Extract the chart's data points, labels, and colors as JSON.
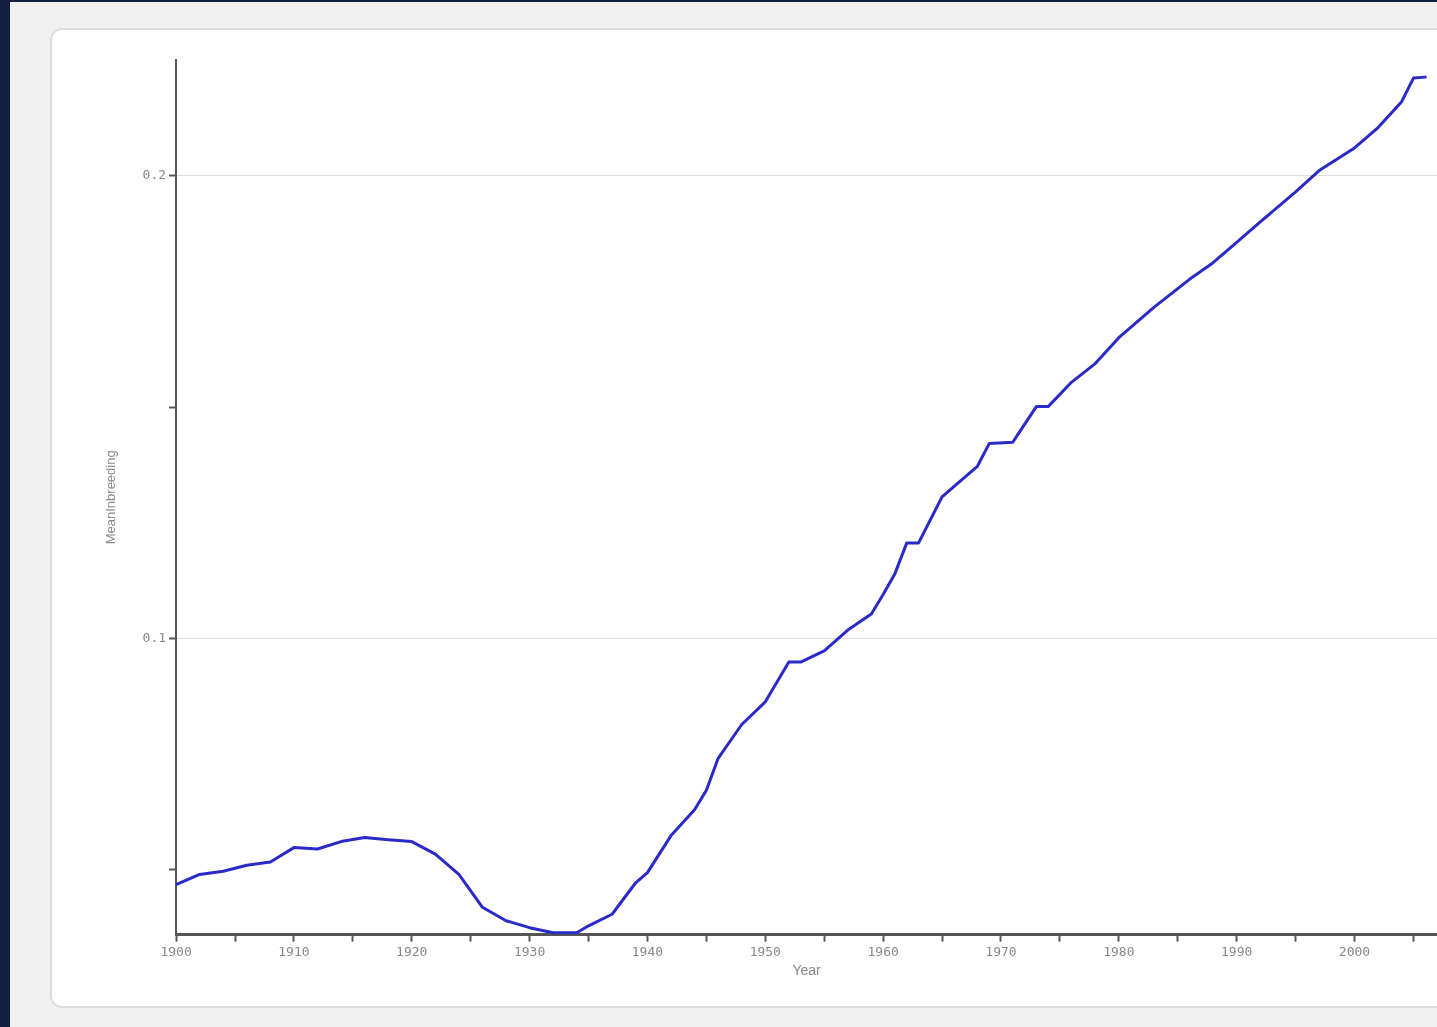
{
  "chart_data": {
    "type": "line",
    "xlabel": "Year",
    "ylabel": "MeanInbreeding",
    "x": [
      1900,
      1902,
      1904,
      1906,
      1908,
      1910,
      1912,
      1914,
      1916,
      1918,
      1920,
      1922,
      1924,
      1926,
      1928,
      1930,
      1932,
      1934,
      1935,
      1937,
      1939,
      1940,
      1942,
      1944,
      1945,
      1946,
      1948,
      1950,
      1952,
      1953,
      1955,
      1957,
      1959,
      1960,
      1961,
      1962,
      1963,
      1965,
      1966,
      1968,
      1969,
      1971,
      1973,
      1974,
      1976,
      1978,
      1980,
      1983,
      1986,
      1988,
      1990,
      1992,
      1995,
      1997,
      2000,
      2002,
      2004,
      2005,
      2006
    ],
    "series": [
      {
        "color": "#2a2ac8",
        "values": [
          0.0468,
          0.049,
          0.0497,
          0.051,
          0.0517,
          0.0548,
          0.0545,
          0.0561,
          0.057,
          0.0565,
          0.0561,
          0.0534,
          0.049,
          0.0419,
          0.039,
          0.0375,
          0.0364,
          0.0364,
          0.0379,
          0.0404,
          0.0472,
          0.0494,
          0.0574,
          0.063,
          0.0672,
          0.0741,
          0.0814,
          0.0863,
          0.0949,
          0.0949,
          0.0973,
          0.1018,
          0.1053,
          0.1095,
          0.114,
          0.1206,
          0.1206,
          0.1306,
          0.1328,
          0.1372,
          0.1421,
          0.1424,
          0.1501,
          0.1501,
          0.1554,
          0.1594,
          0.165,
          0.1716,
          0.1776,
          0.1812,
          0.1856,
          0.19,
          0.1965,
          0.2011,
          0.206,
          0.2104,
          0.216,
          0.2211,
          0.2213
        ]
      }
    ],
    "xlim": [
      1900,
      2007
    ],
    "xticks": [
      1900,
      {
        "value": 1905,
        "label": null
      },
      1910,
      {
        "value": 1915,
        "label": null
      },
      1920,
      {
        "value": 1925,
        "label": null
      },
      1930,
      {
        "value": 1935,
        "label": null
      },
      1940,
      {
        "value": 1945,
        "label": null
      },
      1950,
      {
        "value": 1955,
        "label": null
      },
      1960,
      {
        "value": 1965,
        "label": null
      },
      1970,
      {
        "value": 1975,
        "label": null
      },
      1980,
      {
        "value": 1985,
        "label": null
      },
      1990,
      {
        "value": 1995,
        "label": null
      },
      2000,
      {
        "value": 2005,
        "label": null
      }
    ],
    "ylim": [
      0.036,
      0.225
    ],
    "yticks": [
      {
        "value": 0.05,
        "label": null
      },
      0.1,
      {
        "value": 0.15,
        "label": null
      },
      0.2
    ],
    "grid": "y",
    "legend": false,
    "marker": "none",
    "line_style": "solid"
  }
}
